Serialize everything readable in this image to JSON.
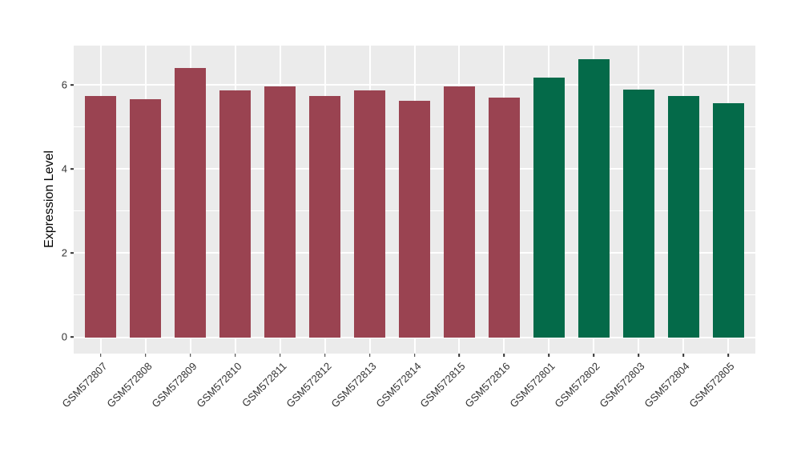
{
  "chart_data": {
    "type": "bar",
    "title": "",
    "xlabel": "",
    "ylabel": "Expression Level",
    "categories": [
      "GSM572807",
      "GSM572808",
      "GSM572809",
      "GSM572810",
      "GSM572811",
      "GSM572812",
      "GSM572813",
      "GSM572814",
      "GSM572815",
      "GSM572816",
      "GSM572801",
      "GSM572802",
      "GSM572803",
      "GSM572804",
      "GSM572805"
    ],
    "values": [
      5.73,
      5.66,
      6.4,
      5.86,
      5.97,
      5.73,
      5.87,
      5.61,
      5.96,
      5.7,
      6.17,
      6.61,
      5.89,
      5.74,
      5.56
    ],
    "bar_colors": [
      "#9A4351",
      "#9A4351",
      "#9A4351",
      "#9A4351",
      "#9A4351",
      "#9A4351",
      "#9A4351",
      "#9A4351",
      "#9A4351",
      "#9A4351",
      "#046A49",
      "#046A49",
      "#046A49",
      "#046A49",
      "#046A49"
    ],
    "y_ticks": [
      "0",
      "2",
      "4",
      "6"
    ],
    "y_tick_values": [
      0,
      2,
      4,
      6
    ],
    "y_minor_values": [
      1,
      3,
      5
    ],
    "y_range": [
      -0.39,
      6.93
    ],
    "x_pad": 0.6,
    "bar_width": 0.7,
    "grid": true,
    "legend": "none",
    "panel_bg": "#EBEBEB",
    "grid_color": "#FFFFFF",
    "tick_color": "#333333",
    "x_tick_rotation": -45
  }
}
